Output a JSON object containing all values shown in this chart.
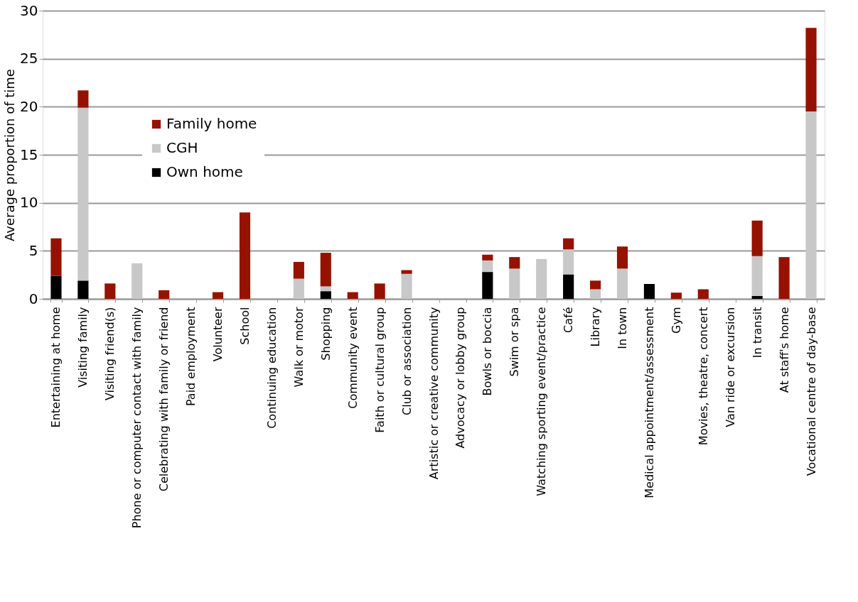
{
  "chart_data": {
    "type": "bar",
    "stacked": true,
    "ylabel": "Average proportion of time",
    "categories": [
      "Entertaining at home",
      "Visiting family",
      "Visiting friend(s)",
      "Phone or computer contact with family",
      "Celebrating with family or friend",
      "Paid employment",
      "Volunteer",
      "School",
      "Continuing education",
      "Walk or motor",
      "Shopping",
      "Community event",
      "Faith or cultural group",
      "Club or association",
      "Artistic or creative community",
      "Advocacy or lobby group",
      "Bowls or boccia",
      "Swim or spa",
      "Watching sporting event/practice",
      "Café",
      "Library",
      "In town",
      "Medical appointment/assessment",
      "Gym",
      "Movies, theatre, concert",
      "Van ride or excursion",
      "In transit",
      "At staff's home",
      "Vocational centre of day-base"
    ],
    "series": [
      {
        "name": "Own home",
        "color": "#000000",
        "values": [
          2.4,
          1.9,
          0,
          0,
          0,
          0,
          0,
          0,
          0,
          0,
          0.8,
          0,
          0,
          0,
          0,
          0,
          2.8,
          0,
          0,
          2.55,
          0,
          0,
          1.55,
          0,
          0,
          0,
          0.3,
          0,
          0
        ]
      },
      {
        "name": "CGH",
        "color": "#c8c8c8",
        "values": [
          0,
          18.0,
          0,
          3.7,
          0,
          0,
          0,
          0,
          0,
          2.1,
          0.5,
          0,
          0,
          2.6,
          0,
          0,
          1.2,
          3.15,
          4.15,
          2.6,
          1.0,
          3.15,
          0,
          0,
          0,
          0,
          4.15,
          0,
          19.5
        ]
      },
      {
        "name": "Family home",
        "color": "#961200",
        "values": [
          3.9,
          1.8,
          1.6,
          0,
          0.9,
          0,
          0.7,
          9.0,
          0,
          1.75,
          3.5,
          0.7,
          1.6,
          0.4,
          0,
          0,
          0.6,
          1.2,
          0,
          1.15,
          0.9,
          2.3,
          0,
          0.65,
          1.0,
          0,
          3.7,
          4.35,
          8.7
        ]
      }
    ],
    "ylim": [
      0,
      30
    ],
    "yticks": [
      0,
      5,
      10,
      15,
      20,
      25,
      30
    ],
    "grid": "y",
    "legend": "top left"
  }
}
